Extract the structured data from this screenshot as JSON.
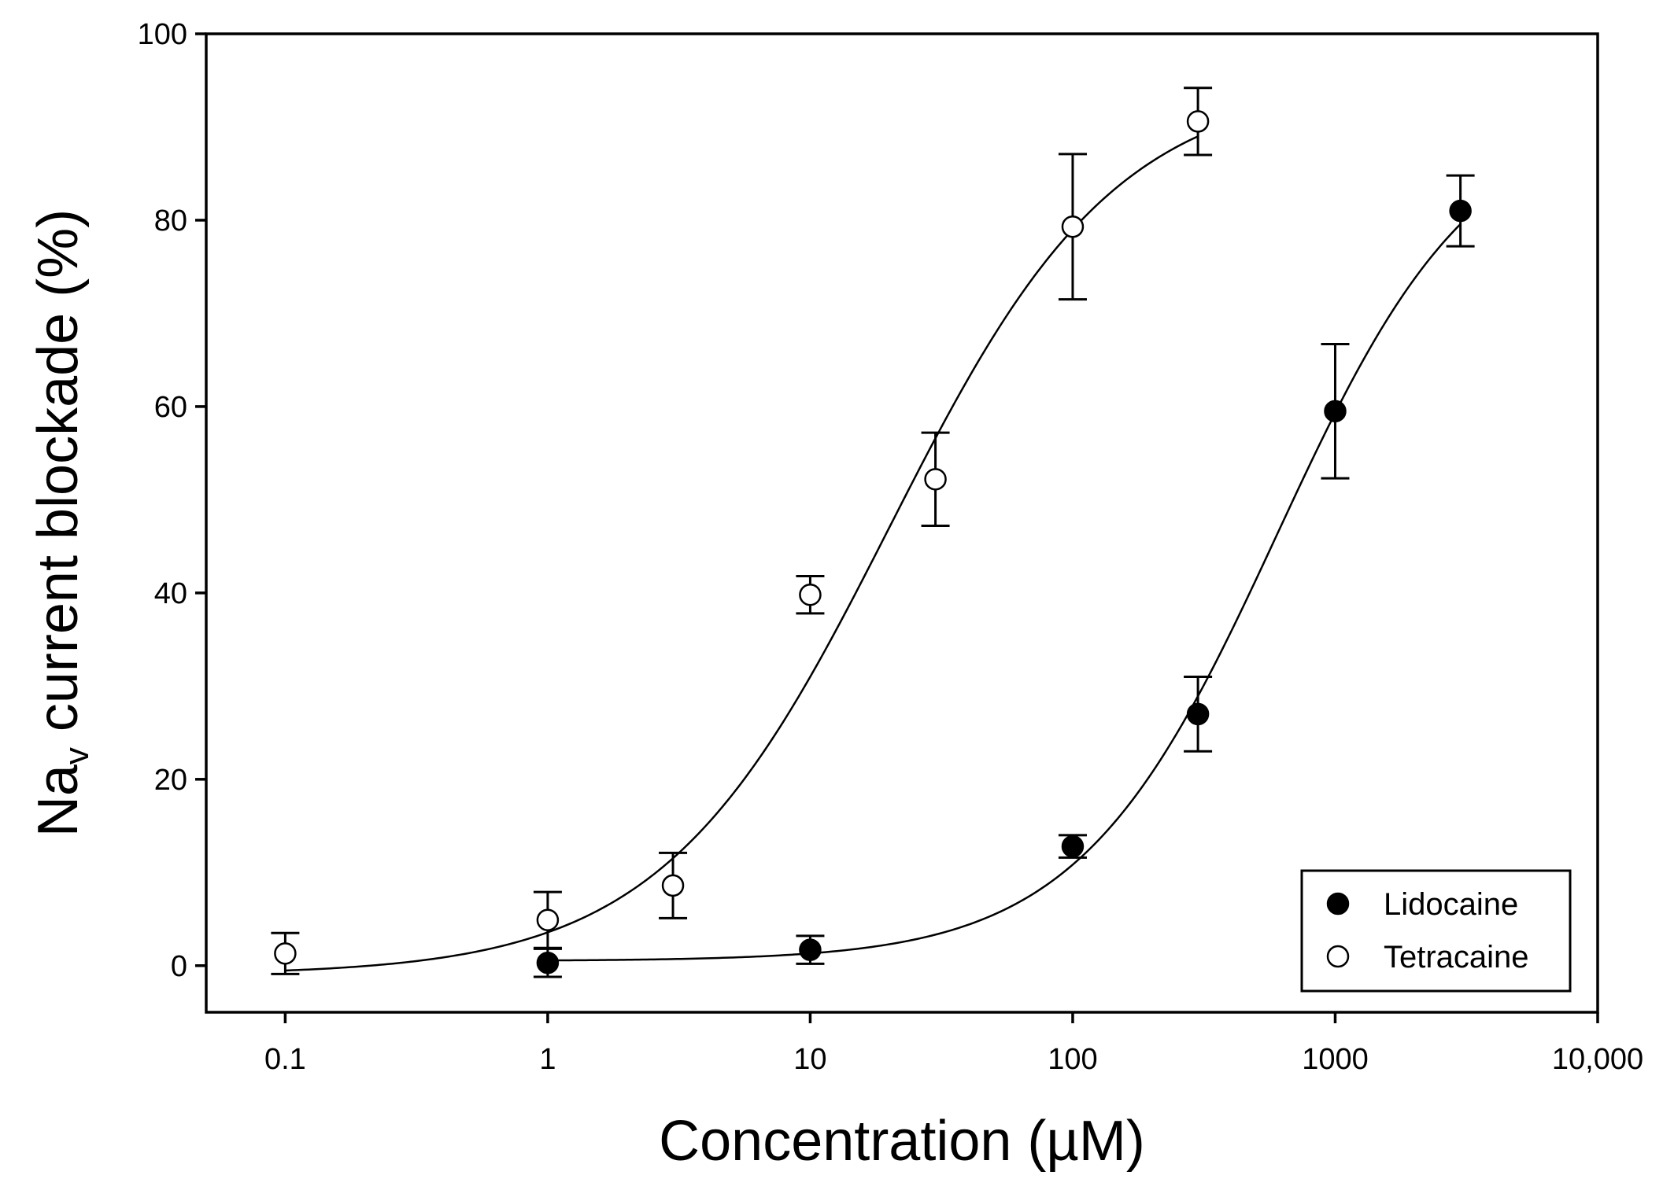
{
  "chart_data": {
    "type": "scatter",
    "title": "",
    "xlabel": "Concentration (µM)",
    "ylabel": {
      "prefix": "Na",
      "subscript": "v",
      "suffix": " current blockade (%)"
    },
    "x_scale": "log",
    "xlim": [
      0.05,
      10000
    ],
    "ylim": [
      -5,
      100
    ],
    "x_ticks": [
      0.1,
      1,
      10,
      100,
      1000,
      10000
    ],
    "x_tick_labels": [
      "0.1",
      "1",
      "10",
      "100",
      "1000",
      "10,000"
    ],
    "y_ticks": [
      0,
      20,
      40,
      60,
      80,
      100
    ],
    "y_tick_labels": [
      "0",
      "20",
      "40",
      "60",
      "80",
      "100"
    ],
    "legend_position": "bottom-right",
    "series": [
      {
        "name": "Lidocaine",
        "marker": "filled-circle",
        "x": [
          1,
          10,
          100,
          300,
          1000,
          3000
        ],
        "y": [
          0.3,
          1.7,
          12.8,
          27.0,
          59.5,
          81.0
        ],
        "err": [
          1.5,
          1.5,
          1.2,
          4.0,
          7.2,
          3.8
        ],
        "fit": {
          "bottom": 0.5,
          "top": 92,
          "ec50": 600,
          "hill": 1.15
        }
      },
      {
        "name": "Tetracaine",
        "marker": "open-circle",
        "x": [
          0.1,
          1,
          3,
          10,
          30,
          100,
          300
        ],
        "y": [
          1.3,
          4.9,
          8.6,
          39.8,
          52.2,
          79.3,
          90.6
        ],
        "err": [
          2.2,
          3.0,
          3.5,
          2.0,
          5.0,
          7.8,
          3.6
        ],
        "fit": {
          "bottom": -1,
          "top": 95,
          "ec50": 20,
          "hill": 1.0
        }
      }
    ]
  }
}
